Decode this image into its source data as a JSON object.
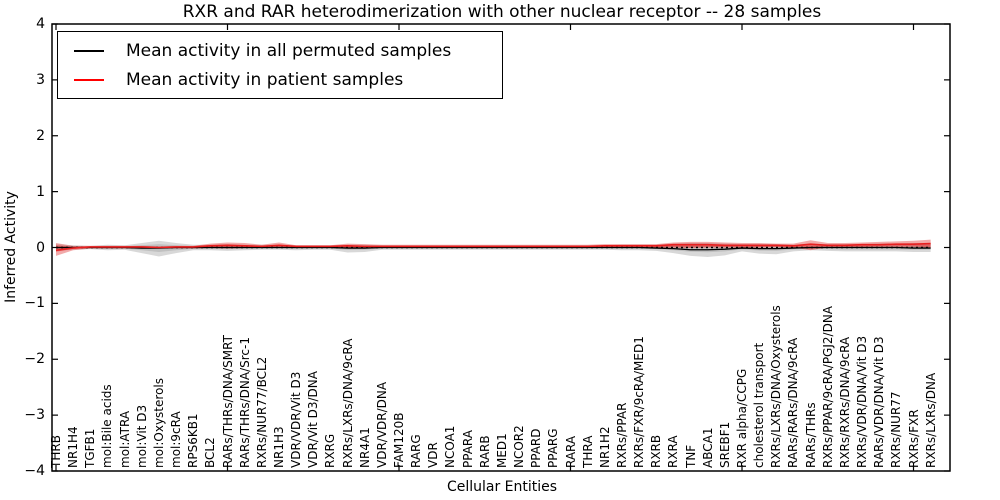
{
  "chart_data": {
    "type": "line",
    "title": "RXR and RAR heterodimerization with other nuclear receptor -- 28 samples",
    "xlabel": "Cellular Entities",
    "ylabel": "Inferred Activity",
    "ylim": [
      -4,
      4
    ],
    "grid": false,
    "legend_position": "upper left",
    "yticks": [
      "4",
      "3",
      "2",
      "1",
      "0",
      "−1",
      "−2",
      "−3",
      "−4"
    ],
    "ytick_values": [
      4,
      3,
      2,
      1,
      0,
      -1,
      -2,
      -3,
      -4
    ],
    "xtick_major_indices": [
      0,
      10,
      20,
      30,
      40,
      50
    ],
    "categories": [
      "THRB",
      "NR1H4",
      "TGFB1",
      "mol:Bile acids",
      "mol:ATRA",
      "mol:Vit D3",
      "mol:Oxysterols",
      "mol:9cRA",
      "RPS6KB1",
      "BCL2",
      "RARs/THRs/DNA/SMRT",
      "RARs/THRs/DNA/Src-1",
      "RXRs/NUR77/BCL2",
      "NR1H3",
      "VDR/VDR/Vit D3",
      "VDR/Vit D3/DNA",
      "RXRG",
      "RXRs/LXRs/DNA/9cRA",
      "NR4A1",
      "VDR/VDR/DNA",
      "FAM120B",
      "RARG",
      "VDR",
      "NCOA1",
      "PPARA",
      "RARB",
      "MED1",
      "NCOR2",
      "PPARD",
      "PPARG",
      "RARA",
      "THRA",
      "NR1H2",
      "RXRs/PPAR",
      "RXRs/FXR/9cRA/MED1",
      "RXRB",
      "RXRA",
      "TNF",
      "ABCA1",
      "SREBF1",
      "RXR alpha/CCPG",
      "cholesterol transport",
      "RXRs/LXRs/DNA/Oxysterols",
      "RARs/RARs/DNA/9cRA",
      "RARs/THRs",
      "RXRs/PPAR/9cRA/PGJ2/DNA",
      "RXRs/RXRs/DNA/9cRA",
      "RXRs/VDR/DNA/Vit D3",
      "RARs/VDR/DNA/Vit D3",
      "RXRs/NUR77",
      "RXRs/FXR",
      "RXRs/LXRs/DNA"
    ],
    "series": [
      {
        "name": "Mean activity in all permuted samples",
        "color": "#000000",
        "values": [
          0,
          0,
          0,
          0,
          0,
          -0.01,
          -0.01,
          0,
          0,
          0,
          0,
          0,
          0,
          0,
          0,
          0,
          0,
          -0.01,
          -0.01,
          0,
          0,
          0,
          0,
          0,
          0,
          0,
          0,
          0,
          0,
          0,
          0,
          0,
          0,
          0,
          0,
          -0.01,
          -0.02,
          -0.04,
          -0.04,
          -0.03,
          -0.01,
          -0.02,
          -0.02,
          -0.01,
          0,
          0,
          0,
          0,
          0,
          0,
          -0.01,
          -0.01
        ]
      },
      {
        "name": "Mean activity in patient samples",
        "color": "#ff0000",
        "values": [
          -0.05,
          -0.01,
          0.01,
          0.01,
          0.01,
          0.01,
          0,
          0.01,
          0.01,
          0.03,
          0.04,
          0.03,
          0.02,
          0.04,
          0.02,
          0.02,
          0.02,
          0.03,
          0.02,
          0.02,
          0.02,
          0.02,
          0.02,
          0.02,
          0.02,
          0.02,
          0.02,
          0.02,
          0.02,
          0.02,
          0.02,
          0.02,
          0.03,
          0.03,
          0.03,
          0.03,
          0.05,
          0.05,
          0.05,
          0.04,
          0.04,
          0.04,
          0.04,
          0.03,
          0.06,
          0.04,
          0.04,
          0.05,
          0.05,
          0.06,
          0.06,
          0.07
        ]
      }
    ],
    "bands": [
      {
        "name": "permuted-samples-band",
        "color": "#999999",
        "opacity": 0.38,
        "lower": [
          -0.06,
          -0.04,
          -0.03,
          -0.05,
          -0.04,
          -0.1,
          -0.16,
          -0.1,
          -0.05,
          -0.05,
          -0.06,
          -0.05,
          -0.04,
          -0.04,
          -0.05,
          -0.04,
          -0.04,
          -0.09,
          -0.08,
          -0.04,
          -0.04,
          -0.04,
          -0.04,
          -0.04,
          -0.04,
          -0.04,
          -0.04,
          -0.04,
          -0.04,
          -0.04,
          -0.04,
          -0.04,
          -0.04,
          -0.05,
          -0.05,
          -0.06,
          -0.1,
          -0.15,
          -0.17,
          -0.14,
          -0.07,
          -0.11,
          -0.12,
          -0.07,
          -0.05,
          -0.06,
          -0.07,
          -0.07,
          -0.07,
          -0.07,
          -0.08,
          -0.08
        ],
        "upper": [
          0.06,
          0.04,
          0.03,
          0.05,
          0.04,
          0.08,
          0.12,
          0.08,
          0.05,
          0.05,
          0.06,
          0.05,
          0.05,
          0.05,
          0.04,
          0.04,
          0.04,
          0.05,
          0.05,
          0.04,
          0.04,
          0.04,
          0.04,
          0.04,
          0.04,
          0.04,
          0.04,
          0.04,
          0.04,
          0.04,
          0.04,
          0.04,
          0.04,
          0.05,
          0.05,
          0.05,
          0.07,
          0.08,
          0.08,
          0.07,
          0.06,
          0.06,
          0.06,
          0.05,
          0.05,
          0.06,
          0.06,
          0.06,
          0.07,
          0.07,
          0.08,
          0.08
        ]
      },
      {
        "name": "patient-samples-band",
        "color": "#e03535",
        "opacity": 0.42,
        "lower": [
          -0.15,
          -0.05,
          -0.02,
          -0.02,
          -0.02,
          -0.02,
          -0.02,
          -0.02,
          -0.02,
          -0.01,
          -0.02,
          -0.01,
          0,
          0,
          -0.01,
          -0.01,
          -0.01,
          -0.02,
          -0.02,
          0,
          0,
          0,
          0,
          0,
          0,
          0,
          0,
          0,
          0,
          0,
          0,
          0,
          0,
          0,
          -0.01,
          0,
          0,
          -0.01,
          0,
          0,
          0,
          0,
          0.01,
          0,
          -0.05,
          0,
          0.01,
          0.01,
          0.02,
          0.02,
          0.02,
          0
        ],
        "upper": [
          0.08,
          0.03,
          0.03,
          0.03,
          0.03,
          0.03,
          0.02,
          0.03,
          0.03,
          0.07,
          0.09,
          0.08,
          0.05,
          0.09,
          0.04,
          0.04,
          0.04,
          0.07,
          0.06,
          0.05,
          0.05,
          0.05,
          0.05,
          0.05,
          0.05,
          0.05,
          0.05,
          0.05,
          0.05,
          0.05,
          0.05,
          0.05,
          0.06,
          0.06,
          0.06,
          0.06,
          0.09,
          0.1,
          0.1,
          0.09,
          0.08,
          0.08,
          0.07,
          0.07,
          0.13,
          0.08,
          0.08,
          0.09,
          0.1,
          0.11,
          0.12,
          0.14
        ]
      }
    ],
    "zero_line": 0
  }
}
